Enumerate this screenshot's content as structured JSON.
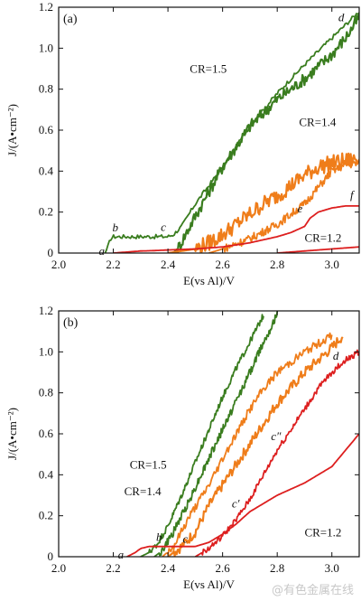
{
  "watermark": "@有色金属在线",
  "colors": {
    "CR1.5": "#3a7d1f",
    "CR1.4": "#ef7d1a",
    "CR1.2": "#dd1f1f",
    "axis": "#111111"
  },
  "chart_data": [
    {
      "type": "line",
      "panel_label": "(a)",
      "xlabel": "E(vs Al)/V",
      "ylabel": "J/(A•cm⁻²)",
      "xlim": [
        2.0,
        3.1
      ],
      "ylim": [
        0,
        1.2
      ],
      "xticks": [
        2.0,
        2.2,
        2.4,
        2.6,
        2.8,
        3.0
      ],
      "yticks": [
        0,
        0.2,
        0.4,
        0.6,
        0.8,
        1.0,
        1.2
      ],
      "series": [
        {
          "name": "CR=1.5",
          "color": "#3a7d1f",
          "noise": 0.01,
          "x": [
            2.17,
            2.18,
            2.19,
            2.2,
            2.25,
            2.3,
            2.35,
            2.4,
            2.42,
            2.45,
            2.5,
            2.55,
            2.6,
            2.7,
            2.8,
            2.9,
            3.0,
            3.1
          ],
          "y": [
            0.0,
            0.03,
            0.07,
            0.08,
            0.08,
            0.08,
            0.08,
            0.08,
            0.09,
            0.13,
            0.24,
            0.33,
            0.42,
            0.62,
            0.78,
            0.92,
            1.05,
            1.18
          ]
        },
        {
          "name": "CR=1.5",
          "color": "#3a7d1f",
          "noise": 0.03,
          "x": [
            2.42,
            2.44,
            2.46,
            2.5,
            2.55,
            2.6,
            2.65,
            2.7,
            2.8,
            2.9,
            3.0,
            3.05,
            3.1
          ],
          "y": [
            0.0,
            0.03,
            0.08,
            0.18,
            0.3,
            0.42,
            0.52,
            0.62,
            0.75,
            0.85,
            0.97,
            1.05,
            1.15
          ]
        },
        {
          "name": "CR=1.4",
          "color": "#ef7d1a",
          "noise": 0.04,
          "x": [
            2.4,
            2.5,
            2.55,
            2.6,
            2.65,
            2.7,
            2.75,
            2.8,
            2.85,
            2.9,
            2.95,
            3.0,
            3.05,
            3.1
          ],
          "y": [
            0.0,
            0.02,
            0.05,
            0.09,
            0.14,
            0.19,
            0.24,
            0.28,
            0.33,
            0.38,
            0.42,
            0.44,
            0.45,
            0.46
          ]
        },
        {
          "name": "CR=1.4",
          "color": "#ef7d1a",
          "noise": 0.02,
          "x": [
            2.55,
            2.6,
            2.7,
            2.8,
            2.9,
            2.95,
            3.0,
            3.05,
            3.1
          ],
          "y": [
            0.0,
            0.02,
            0.07,
            0.14,
            0.24,
            0.32,
            0.4,
            0.43,
            0.44
          ]
        },
        {
          "name": "CR=1.2",
          "color": "#dd1f1f",
          "noise": 0.0,
          "x": [
            2.2,
            2.25,
            2.3,
            2.35,
            2.4,
            2.5,
            2.6,
            2.7,
            2.8,
            2.85,
            2.9,
            2.92,
            2.95,
            3.0,
            3.05,
            3.1
          ],
          "y": [
            0.0,
            0.005,
            0.01,
            0.012,
            0.015,
            0.02,
            0.03,
            0.05,
            0.08,
            0.1,
            0.13,
            0.17,
            0.2,
            0.22,
            0.23,
            0.23
          ]
        },
        {
          "name": "CR=1.2",
          "color": "#dd1f1f",
          "noise": 0.0,
          "x": [
            2.8,
            2.9,
            3.0,
            3.1
          ],
          "y": [
            0.0,
            0.01,
            0.02,
            0.03
          ]
        }
      ],
      "points": [
        {
          "label": "a",
          "x": 2.18,
          "y": 0.0
        },
        {
          "label": "b",
          "x": 2.19,
          "y": 0.08
        },
        {
          "label": "c",
          "x": 2.42,
          "y": 0.09
        },
        {
          "label": "d",
          "x": 3.07,
          "y": 1.15
        },
        {
          "label": "e",
          "x": 2.92,
          "y": 0.18
        },
        {
          "label": "f",
          "x": 3.08,
          "y": 0.23
        }
      ],
      "annotations": [
        {
          "text": "CR=1.5",
          "x": 2.48,
          "y": 0.88
        },
        {
          "text": "CR=1.4",
          "x": 2.88,
          "y": 0.62
        },
        {
          "text": "CR=1.2",
          "x": 2.9,
          "y": 0.055
        }
      ]
    },
    {
      "type": "line",
      "panel_label": "(b)",
      "xlabel": "E(vs Al)/V",
      "ylabel": "J/(A•cm⁻²)",
      "xlim": [
        2.0,
        3.1
      ],
      "ylim": [
        0,
        1.2
      ],
      "xticks": [
        2.0,
        2.2,
        2.4,
        2.6,
        2.8,
        3.0
      ],
      "yticks": [
        0,
        0.2,
        0.4,
        0.6,
        0.8,
        1.0,
        1.2
      ],
      "series": [
        {
          "name": "CR=1.5",
          "color": "#3a7d1f",
          "noise": 0.015,
          "x": [
            2.3,
            2.33,
            2.36,
            2.4,
            2.45,
            2.5,
            2.55,
            2.6,
            2.65,
            2.7,
            2.75
          ],
          "y": [
            0.0,
            0.02,
            0.06,
            0.15,
            0.3,
            0.46,
            0.62,
            0.78,
            0.92,
            1.05,
            1.18
          ]
        },
        {
          "name": "CR=1.5",
          "color": "#3a7d1f",
          "noise": 0.02,
          "x": [
            2.35,
            2.38,
            2.42,
            2.48,
            2.55,
            2.6,
            2.65,
            2.7,
            2.75,
            2.8
          ],
          "y": [
            0.0,
            0.03,
            0.12,
            0.28,
            0.48,
            0.62,
            0.76,
            0.9,
            1.05,
            1.18
          ]
        },
        {
          "name": "CR=1.4",
          "color": "#ef7d1a",
          "noise": 0.02,
          "x": [
            2.38,
            2.42,
            2.48,
            2.55,
            2.6,
            2.65,
            2.7,
            2.75,
            2.8,
            2.9,
            3.0
          ],
          "y": [
            0.0,
            0.05,
            0.2,
            0.35,
            0.48,
            0.6,
            0.72,
            0.82,
            0.9,
            1.0,
            1.08
          ]
        },
        {
          "name": "CR=1.4",
          "color": "#ef7d1a",
          "noise": 0.025,
          "x": [
            2.4,
            2.45,
            2.5,
            2.55,
            2.6,
            2.7,
            2.8,
            2.9,
            3.0,
            3.04
          ],
          "y": [
            0.0,
            0.05,
            0.12,
            0.25,
            0.35,
            0.55,
            0.75,
            0.9,
            1.02,
            1.08
          ]
        },
        {
          "name": "CR=1.2",
          "color": "#dd1f1f",
          "noise": 0.0,
          "x": [
            2.25,
            2.28,
            2.3,
            2.33,
            2.35,
            2.4,
            2.45,
            2.5,
            2.55,
            2.6,
            2.65,
            2.7,
            2.75,
            2.8,
            2.9,
            3.0,
            3.1
          ],
          "y": [
            0.0,
            0.02,
            0.04,
            0.05,
            0.05,
            0.05,
            0.05,
            0.05,
            0.07,
            0.11,
            0.16,
            0.22,
            0.26,
            0.3,
            0.36,
            0.44,
            0.6
          ]
        },
        {
          "name": "CR=1.2",
          "color": "#dd1f1f",
          "noise": 0.015,
          "x": [
            2.5,
            2.55,
            2.6,
            2.65,
            2.7,
            2.75,
            2.8,
            2.85,
            2.9,
            2.95,
            3.0,
            3.05,
            3.1
          ],
          "y": [
            0.0,
            0.04,
            0.1,
            0.18,
            0.28,
            0.4,
            0.52,
            0.62,
            0.72,
            0.82,
            0.9,
            0.96,
            1.0
          ]
        }
      ],
      "points": [
        {
          "label": "a",
          "x": 2.25,
          "y": 0.0
        },
        {
          "label": "b",
          "x": 2.35,
          "y": 0.05
        },
        {
          "label": "c",
          "x": 2.5,
          "y": 0.05
        },
        {
          "label": "c′",
          "x": 2.68,
          "y": 0.24
        },
        {
          "label": "c″",
          "x": 2.83,
          "y": 0.57
        },
        {
          "label": "d",
          "x": 3.05,
          "y": 0.98
        }
      ],
      "annotations": [
        {
          "text": "CR=1.5",
          "x": 2.26,
          "y": 0.43
        },
        {
          "text": "CR=1.4",
          "x": 2.24,
          "y": 0.3
        },
        {
          "text": "CR=1.2",
          "x": 2.9,
          "y": 0.1
        }
      ]
    }
  ]
}
